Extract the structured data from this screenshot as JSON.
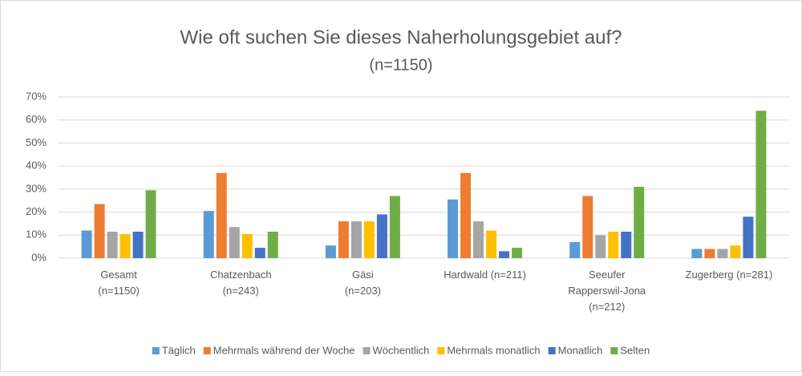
{
  "chart_data": {
    "type": "bar",
    "title": "Wie oft suchen Sie dieses Naherholungsgebiet auf?",
    "subtitle": "(n=1150)",
    "categories": [
      "Gesamt\n(n=1150)",
      "Chatzenbach\n(n=243)",
      "Gäsi\n(n=203)",
      "Hardwald (n=211)",
      "Seeufer\nRapperswil-Jona\n(n=212)",
      "Zugerberg (n=281)"
    ],
    "series": [
      {
        "name": "Täglich",
        "color": "#5b9bd5",
        "values": [
          12,
          20.5,
          5.5,
          25.5,
          7,
          4
        ]
      },
      {
        "name": "Mehrmals während der Woche",
        "color": "#ed7d31",
        "values": [
          23.5,
          37,
          16,
          37,
          27,
          4
        ]
      },
      {
        "name": "Wöchentlich",
        "color": "#a5a5a5",
        "values": [
          11.5,
          13.5,
          16,
          16,
          10,
          4
        ]
      },
      {
        "name": "Mehrmals monatlich",
        "color": "#ffc000",
        "values": [
          10.5,
          10.5,
          16,
          12,
          11.5,
          5.5
        ]
      },
      {
        "name": "Monatlich",
        "color": "#4472c4",
        "values": [
          11.5,
          4.5,
          19,
          3,
          11.5,
          18
        ]
      },
      {
        "name": "Selten",
        "color": "#70ad47",
        "values": [
          29.5,
          11.5,
          27,
          4.5,
          31,
          64
        ]
      }
    ],
    "ylim": [
      0,
      70
    ],
    "yticks": [
      {
        "value": 0,
        "label": "0%"
      },
      {
        "value": 10,
        "label": "10%"
      },
      {
        "value": 20,
        "label": "20%"
      },
      {
        "value": 30,
        "label": "30%"
      },
      {
        "value": 40,
        "label": "40%"
      },
      {
        "value": 50,
        "label": "50%"
      },
      {
        "value": 60,
        "label": "60%"
      },
      {
        "value": 70,
        "label": "70%"
      }
    ],
    "grid": true,
    "legend": "bottom"
  }
}
